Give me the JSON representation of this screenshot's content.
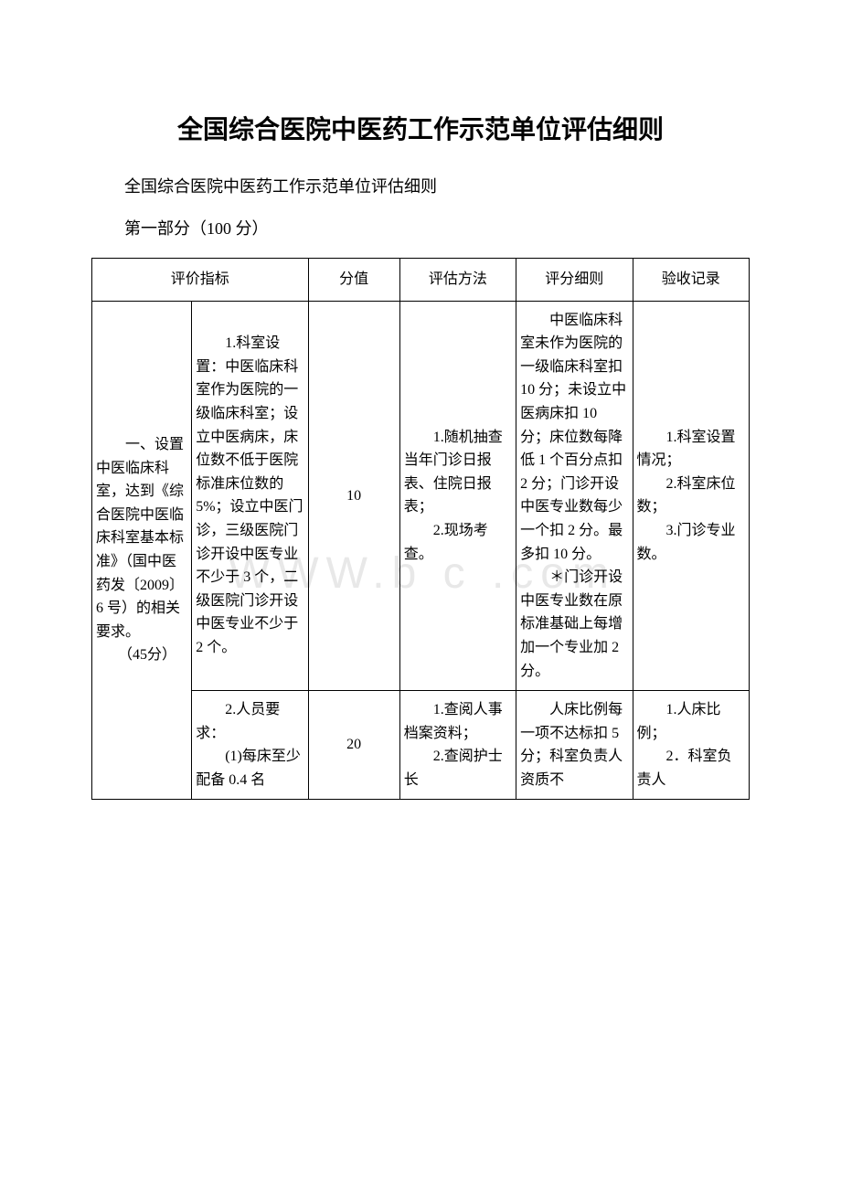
{
  "title": "全国综合医院中医药工作示范单位评估细则",
  "subtitle": "全国综合医院中医药工作示范单位评估细则",
  "section_label": "第一部分（100 分）",
  "watermark": "WWW.b    c  .com",
  "table": {
    "headers": {
      "indicator": "评价指标",
      "score": "分值",
      "method": "评估方法",
      "rule": "评分细则",
      "record": "验收记录"
    },
    "rows": [
      {
        "indicator": "　　一、设置中医临床科室，达到《综合医院中医临床科室基本标准》（国中医药发〔2009〕6 号）的相关要求。\n　　（45分）",
        "sub": "　　1.科室设置：中医临床科室作为医院的一级临床科室；设立中医病床，床位数不低于医院标准床位数的 5%；设立中医门诊，三级医院门诊开设中医专业不少于 3 个，二级医院门诊开设中医专业不少于 2 个。",
        "score": "10",
        "method": "　　1.随机抽查当年门诊日报表、住院日报表；\n　　2.现场考查。",
        "rule": "　　中医临床科室未作为医院的一级临床科室扣 10 分；未设立中医病床扣 10 分；床位数每降低 1 个百分点扣 2 分；门诊开设中医专业数每少一个扣 2 分。最多扣 10 分。\n　　＊门诊开设中医专业数在原标准基础上每增加一个专业加 2 分。",
        "record": "　　1.科室设置情况；\n　　2.科室床位数；\n　　3.门诊专业数。"
      },
      {
        "indicator": "",
        "sub": "　　2.人员要求：\n　　(1)每床至少配备 0.4 名",
        "score": "20",
        "method": "　　1.查阅人事档案资料；\n　　2.查阅护士长",
        "rule": "　　人床比例每一项不达标扣 5 分；科室负责人资质不",
        "record": "　　1.人床比例；\n　　2．科室负责人"
      }
    ]
  }
}
